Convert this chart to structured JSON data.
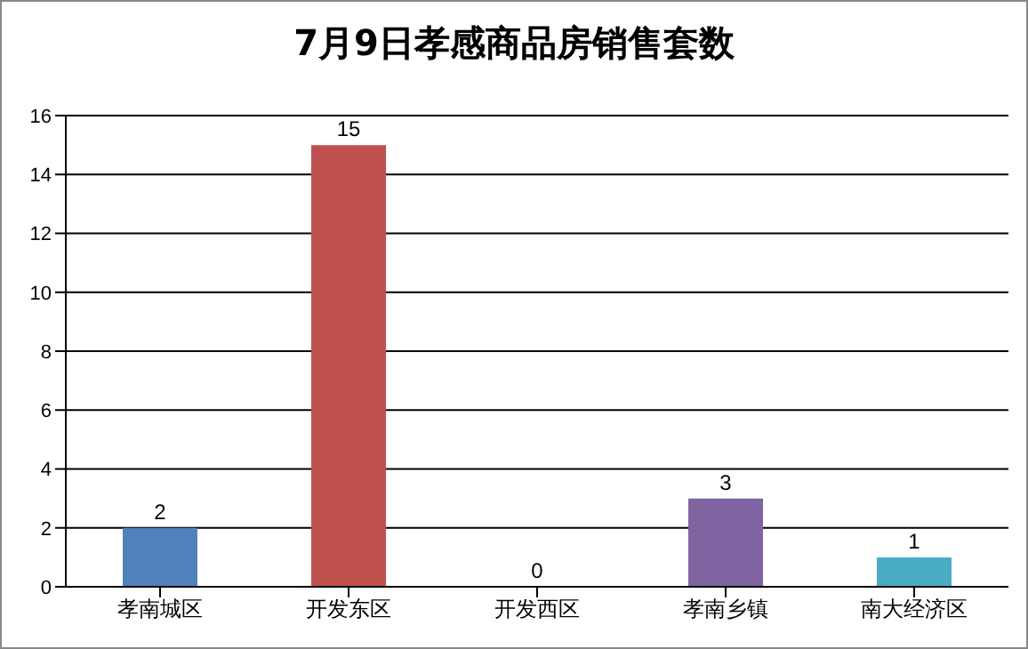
{
  "chart_data": {
    "type": "bar",
    "title": "7月9日孝感商品房销售套数",
    "categories": [
      "孝南城区",
      "开发东区",
      "开发西区",
      "孝南乡镇",
      "南大经济区"
    ],
    "values": [
      2,
      15,
      0,
      3,
      1
    ],
    "colors": [
      "#4f81bd",
      "#c0504d",
      "#9bbb59",
      "#8064a2",
      "#4bacc6"
    ],
    "ylim": [
      0,
      16
    ],
    "yticks": [
      0,
      2,
      4,
      6,
      8,
      10,
      12,
      14,
      16
    ],
    "grid": "y",
    "data_labels": true,
    "legend": false
  }
}
